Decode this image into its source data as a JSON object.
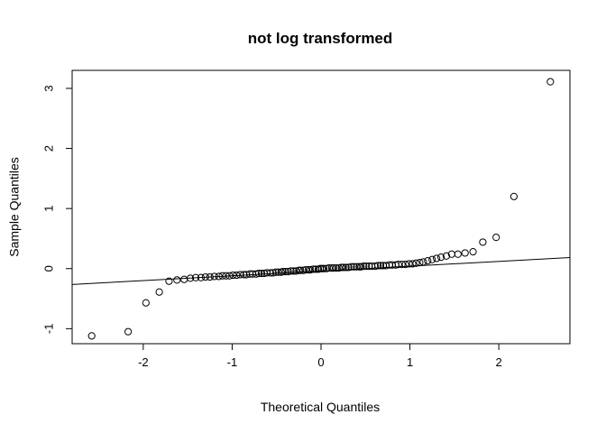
{
  "chart_data": {
    "type": "scatter",
    "title": "not log transformed",
    "xlabel": "Theoretical Quantiles",
    "ylabel": "Sample Quantiles",
    "xlim": [
      -2.8,
      2.8
    ],
    "ylim": [
      -1.25,
      3.3
    ],
    "xticks": [
      -2,
      -1,
      0,
      1,
      2
    ],
    "xtick_labels": [
      "-2",
      "-1",
      "0",
      "1",
      "2"
    ],
    "yticks": [
      -1,
      0,
      1,
      2,
      3
    ],
    "ytick_labels": [
      "-1",
      "0",
      "1",
      "2",
      "3"
    ],
    "grid": false,
    "reference_line": {
      "intercept": -0.04,
      "slope": 0.08
    },
    "points": {
      "x": [
        -2.58,
        -2.17,
        -1.97,
        -1.82,
        -1.71,
        -1.62,
        -1.54,
        -1.47,
        -1.41,
        -1.35,
        -1.3,
        -1.25,
        -1.2,
        -1.15,
        -1.11,
        -1.07,
        -1.03,
        -0.99,
        -0.95,
        -0.91,
        -0.87,
        -0.84,
        -0.8,
        -0.77,
        -0.73,
        -0.7,
        -0.67,
        -0.64,
        -0.61,
        -0.57,
        -0.54,
        -0.51,
        -0.48,
        -0.45,
        -0.43,
        -0.4,
        -0.37,
        -0.34,
        -0.31,
        -0.28,
        -0.25,
        -0.23,
        -0.2,
        -0.17,
        -0.14,
        -0.12,
        -0.09,
        -0.06,
        -0.03,
        -0.01,
        0.01,
        0.03,
        0.06,
        0.09,
        0.12,
        0.14,
        0.17,
        0.2,
        0.23,
        0.25,
        0.28,
        0.31,
        0.34,
        0.37,
        0.4,
        0.43,
        0.45,
        0.48,
        0.51,
        0.54,
        0.57,
        0.61,
        0.64,
        0.67,
        0.7,
        0.73,
        0.77,
        0.8,
        0.84,
        0.87,
        0.91,
        0.95,
        0.99,
        1.03,
        1.07,
        1.11,
        1.15,
        1.2,
        1.25,
        1.3,
        1.35,
        1.41,
        1.47,
        1.54,
        1.62,
        1.71,
        1.82,
        1.97,
        2.17,
        2.58
      ],
      "y": [
        -1.12,
        -1.05,
        -0.57,
        -0.39,
        -0.21,
        -0.19,
        -0.18,
        -0.16,
        -0.15,
        -0.15,
        -0.14,
        -0.14,
        -0.13,
        -0.13,
        -0.12,
        -0.12,
        -0.12,
        -0.11,
        -0.11,
        -0.1,
        -0.1,
        -0.1,
        -0.09,
        -0.09,
        -0.09,
        -0.08,
        -0.08,
        -0.08,
        -0.07,
        -0.07,
        -0.07,
        -0.06,
        -0.06,
        -0.06,
        -0.05,
        -0.05,
        -0.05,
        -0.04,
        -0.04,
        -0.04,
        -0.03,
        -0.03,
        -0.03,
        -0.02,
        -0.02,
        -0.02,
        -0.01,
        -0.01,
        -0.01,
        0.0,
        0.0,
        0.0,
        0.0,
        0.01,
        0.01,
        0.01,
        0.01,
        0.01,
        0.02,
        0.02,
        0.02,
        0.02,
        0.03,
        0.03,
        0.03,
        0.03,
        0.03,
        0.04,
        0.04,
        0.04,
        0.04,
        0.04,
        0.05,
        0.05,
        0.05,
        0.05,
        0.06,
        0.06,
        0.06,
        0.07,
        0.07,
        0.07,
        0.08,
        0.08,
        0.09,
        0.1,
        0.11,
        0.13,
        0.15,
        0.17,
        0.19,
        0.21,
        0.24,
        0.24,
        0.26,
        0.28,
        0.44,
        0.52,
        1.2,
        3.11
      ]
    }
  }
}
